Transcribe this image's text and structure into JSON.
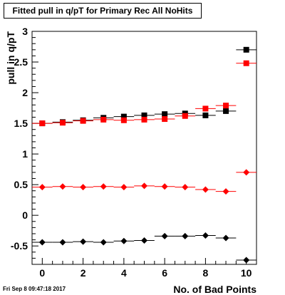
{
  "title": "Fitted pull in q/pT for Primary Rec All NoHits",
  "timestamp": "Fri Sep  8 09:47:18 2017",
  "colors": {
    "black_series": "#000000",
    "red_series": "#ff0000",
    "frame": "#000000"
  },
  "chart_data": {
    "type": "scatter",
    "xlabel": "No. of Bad Points",
    "ylabel": "pull in q/pT",
    "xlim": [
      -0.5,
      10.5
    ],
    "ylim": [
      -0.8,
      3.0
    ],
    "x_tick_labels": [
      "0",
      "2",
      "4",
      "6",
      "8",
      "10"
    ],
    "y_tick_labels": [
      "-0.5",
      "0",
      "0.5",
      "1",
      "1.5",
      "2",
      "2.5",
      "3"
    ],
    "grid": false,
    "series": [
      {
        "marker": "square",
        "color": "#000000",
        "x": [
          0,
          1,
          2,
          3,
          4,
          5,
          6,
          7,
          8,
          9,
          10
        ],
        "y": [
          1.5,
          1.52,
          1.55,
          1.59,
          1.61,
          1.63,
          1.65,
          1.66,
          1.63,
          1.7,
          2.7
        ]
      },
      {
        "marker": "square",
        "color": "#ff0000",
        "x": [
          0,
          1,
          2,
          3,
          4,
          5,
          6,
          7,
          8,
          9,
          10
        ],
        "y": [
          1.5,
          1.51,
          1.54,
          1.56,
          1.55,
          1.56,
          1.57,
          1.62,
          1.74,
          1.79,
          2.48
        ]
      },
      {
        "marker": "diamond",
        "color": "#ff0000",
        "x": [
          0,
          1,
          2,
          3,
          4,
          5,
          6,
          7,
          8,
          9,
          10
        ],
        "y": [
          0.46,
          0.47,
          0.46,
          0.47,
          0.46,
          0.48,
          0.47,
          0.46,
          0.42,
          0.39,
          0.7
        ]
      },
      {
        "marker": "diamond",
        "color": "#000000",
        "x": [
          0,
          1,
          2,
          3,
          4,
          5,
          6,
          7,
          8,
          9,
          10
        ],
        "y": [
          -0.44,
          -0.44,
          -0.43,
          -0.44,
          -0.42,
          -0.41,
          -0.34,
          -0.34,
          -0.33,
          -0.37,
          -0.73
        ]
      }
    ]
  }
}
